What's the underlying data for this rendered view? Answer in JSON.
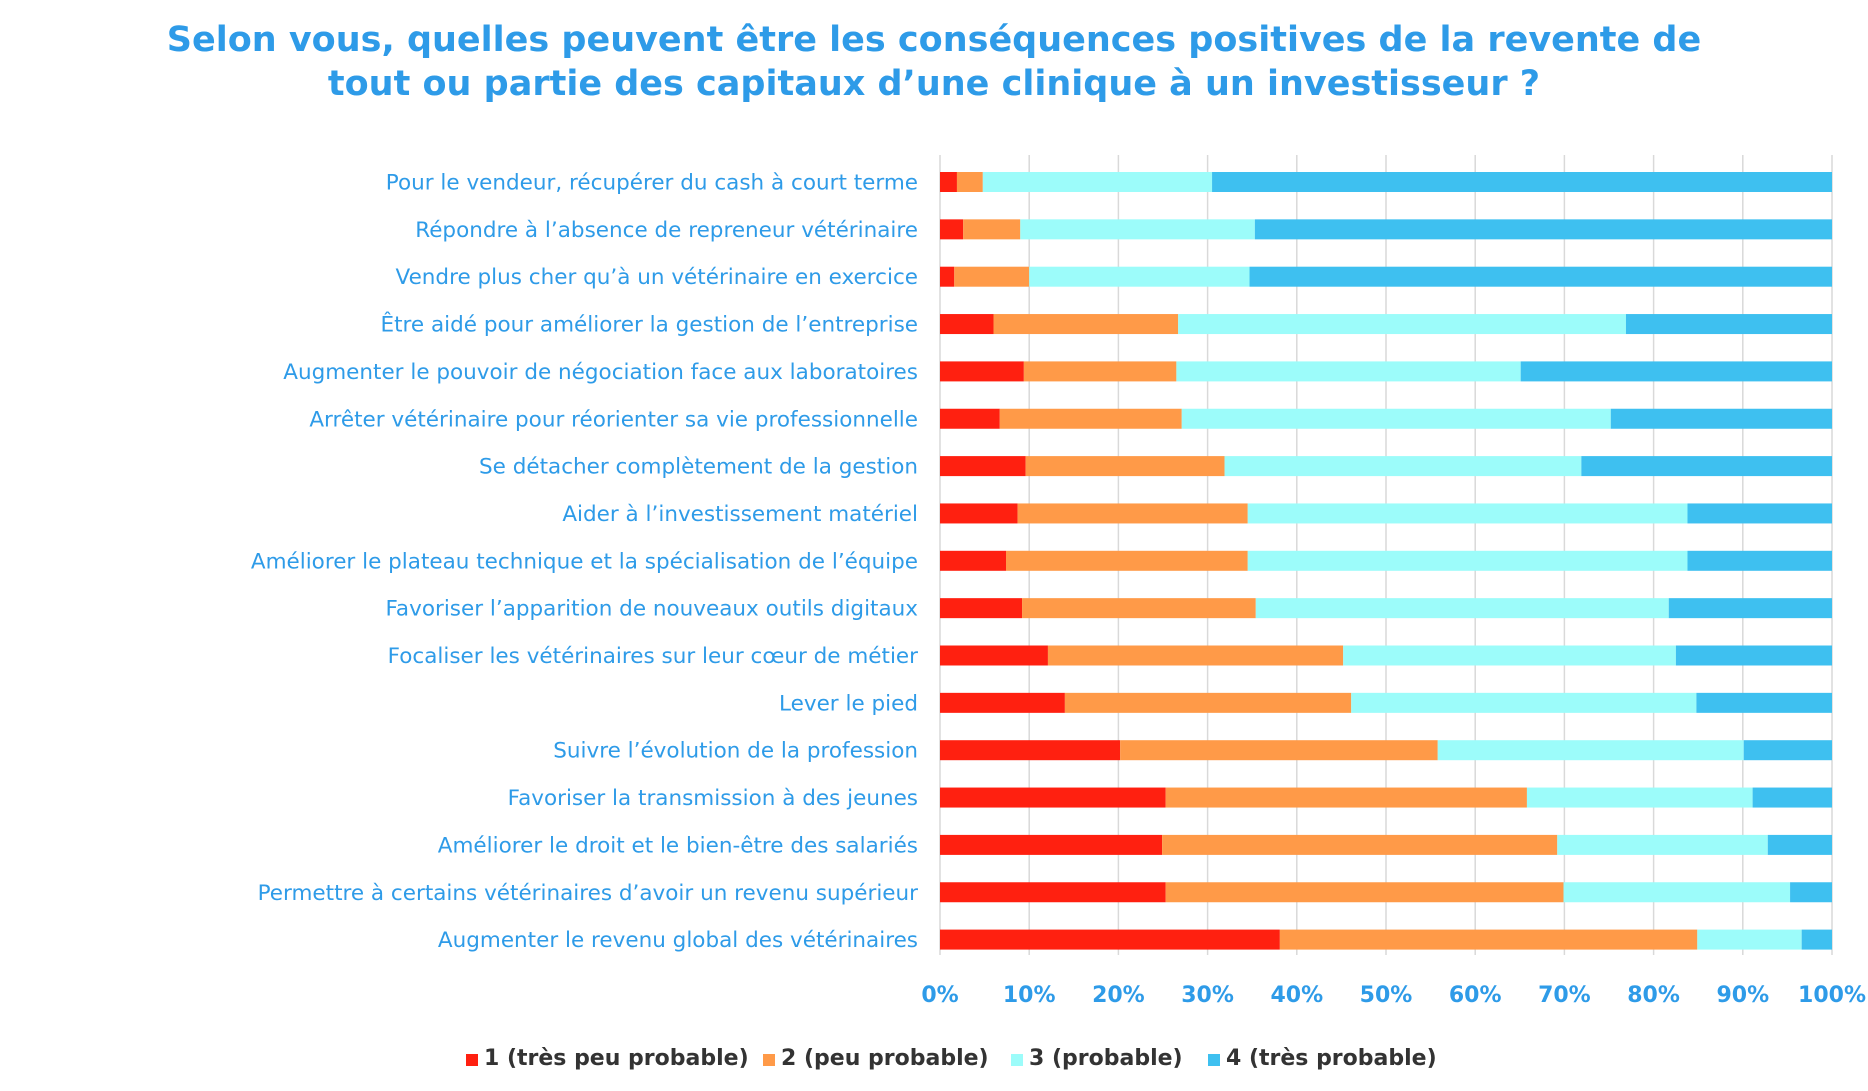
{
  "chart_data": {
    "type": "bar",
    "orientation": "horizontal",
    "stacked": "percent",
    "title": [
      "Selon vous, quelles peuvent être les conséquences positives de la revente de",
      "tout ou partie des capitaux d’une clinique à un investisseur ?"
    ],
    "categories": [
      "Pour le vendeur, récupérer du cash à court terme",
      "Répondre à l’absence de repreneur vétérinaire",
      "Vendre plus cher qu’à un vétérinaire en exercice",
      "Être aidé pour améliorer la gestion de l’entreprise",
      "Augmenter le pouvoir de négociation face aux laboratoires",
      "Arrêter vétérinaire pour réorienter sa vie professionnelle",
      "Se détacher complètement de la gestion",
      "Aider à l’investissement matériel",
      "Améliorer le plateau technique et la spécialisation de l’équipe",
      "Favoriser l’apparition de nouveaux outils digitaux",
      "Focaliser les vétérinaires sur leur cœur de métier",
      "Lever le pied",
      "Suivre l’évolution de la profession",
      "Favoriser la transmission à des jeunes",
      "Améliorer le droit et le bien-être des salariés",
      "Permettre à certains vétérinaires d’avoir un revenu supérieur",
      "Augmenter le revenu global des vétérinaires"
    ],
    "series": [
      {
        "name": "1 (très peu probable)",
        "color": "#ff2010",
        "values": [
          1.9,
          2.6,
          1.6,
          6.0,
          9.4,
          6.7,
          9.6,
          8.7,
          7.4,
          9.2,
          12.1,
          14.0,
          20.2,
          25.3,
          24.9,
          25.3,
          38.1
        ]
      },
      {
        "name": "2 (peu probable)",
        "color": "#ff9a48",
        "values": [
          2.9,
          6.4,
          8.4,
          20.7,
          17.1,
          20.4,
          22.3,
          25.8,
          27.1,
          26.2,
          33.1,
          32.1,
          35.6,
          40.5,
          44.3,
          44.6,
          46.8
        ]
      },
      {
        "name": "3 (probable)",
        "color": "#9cfcfa",
        "values": [
          25.7,
          26.3,
          24.7,
          50.2,
          38.6,
          48.1,
          40.0,
          49.3,
          49.3,
          46.3,
          37.3,
          38.7,
          34.3,
          25.3,
          23.6,
          25.4,
          11.7
        ]
      },
      {
        "name": "4 (très probable)",
        "color": "#3ec0f0",
        "values": [
          69.5,
          64.7,
          65.3,
          23.1,
          34.9,
          24.8,
          28.1,
          16.2,
          16.2,
          18.3,
          17.5,
          15.2,
          9.9,
          8.9,
          7.2,
          4.7,
          3.4
        ]
      }
    ],
    "xlim": [
      0,
      100
    ],
    "xticks": [
      "0%",
      "10%",
      "20%",
      "30%",
      "40%",
      "50%",
      "60%",
      "70%",
      "80%",
      "90%",
      "100%"
    ],
    "grid": "vertical",
    "legend": "bottom",
    "colors": {
      "title": "#2e9be8",
      "labels": "#2e9be8",
      "grid": "#d9d9d9"
    }
  }
}
